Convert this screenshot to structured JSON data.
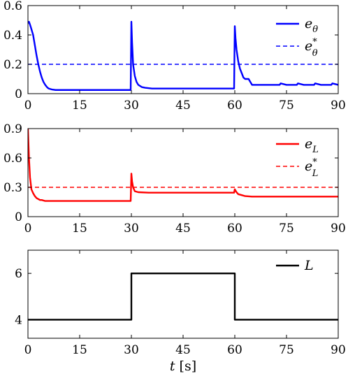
{
  "chart_data": [
    {
      "type": "line",
      "xlim": [
        0,
        90
      ],
      "ylim": [
        0,
        0.6
      ],
      "xticks": [
        "0",
        "15",
        "30",
        "45",
        "60",
        "75",
        "90"
      ],
      "yticks": [
        "0",
        "0.2",
        "0.4",
        "0.6"
      ],
      "legend_position": "top-right",
      "grid": false,
      "series": [
        {
          "name_main": "e",
          "name_sub": "θ",
          "name_sup": "",
          "style": "solid",
          "color": "#0000ff",
          "x": [
            0,
            0.3,
            0.6,
            1,
            1.5,
            2,
            2.5,
            3,
            3.5,
            4,
            4.5,
            5,
            5.5,
            6,
            7,
            8,
            10,
            15,
            20,
            25,
            29.8,
            30,
            30.2,
            30.5,
            31,
            31.5,
            32,
            33,
            34,
            36,
            40,
            45,
            50,
            55,
            59.8,
            60,
            60.2,
            60.5,
            61,
            61.5,
            62,
            62.5,
            63,
            64,
            65,
            70,
            73,
            73.3,
            75,
            78,
            78.3,
            80,
            83,
            83.3,
            85,
            88,
            88.3,
            90
          ],
          "y": [
            0.48,
            0.49,
            0.47,
            0.44,
            0.4,
            0.33,
            0.26,
            0.2,
            0.15,
            0.11,
            0.08,
            0.06,
            0.045,
            0.035,
            0.028,
            0.025,
            0.025,
            0.025,
            0.025,
            0.025,
            0.025,
            0.49,
            0.35,
            0.2,
            0.12,
            0.08,
            0.06,
            0.045,
            0.04,
            0.035,
            0.035,
            0.035,
            0.035,
            0.035,
            0.035,
            0.46,
            0.38,
            0.3,
            0.22,
            0.17,
            0.14,
            0.11,
            0.1,
            0.1,
            0.06,
            0.06,
            0.06,
            0.07,
            0.06,
            0.06,
            0.07,
            0.06,
            0.06,
            0.07,
            0.06,
            0.06,
            0.07,
            0.06
          ]
        },
        {
          "name_main": "e",
          "name_sub": "θ",
          "name_sup": "*",
          "style": "dashed",
          "color": "#0000ff",
          "x": [
            0,
            90
          ],
          "y": [
            0.2,
            0.2
          ]
        }
      ]
    },
    {
      "type": "line",
      "xlim": [
        0,
        90
      ],
      "ylim": [
        0,
        0.9
      ],
      "xticks": [
        "0",
        "15",
        "30",
        "45",
        "60",
        "75",
        "90"
      ],
      "yticks": [
        "0",
        "0.3",
        "0.6",
        "0.9"
      ],
      "legend_position": "top-right",
      "grid": false,
      "series": [
        {
          "name_main": "e",
          "name_sub": "L",
          "name_sup": "",
          "style": "solid",
          "color": "#ff0000",
          "x": [
            0,
            0.3,
            0.6,
            1,
            1.5,
            2,
            2.5,
            3,
            3.5,
            4,
            5,
            8,
            15,
            20,
            25,
            29.8,
            30,
            30.2,
            30.5,
            31,
            32,
            35,
            45,
            55,
            59.8,
            60,
            60.5,
            61,
            62,
            63,
            65,
            70,
            75,
            80,
            85,
            90
          ],
          "y": [
            0.9,
            0.6,
            0.4,
            0.28,
            0.24,
            0.21,
            0.19,
            0.18,
            0.17,
            0.17,
            0.16,
            0.16,
            0.16,
            0.16,
            0.16,
            0.16,
            0.44,
            0.36,
            0.3,
            0.26,
            0.25,
            0.245,
            0.245,
            0.245,
            0.245,
            0.28,
            0.25,
            0.23,
            0.22,
            0.21,
            0.205,
            0.205,
            0.205,
            0.205,
            0.205,
            0.205
          ]
        },
        {
          "name_main": "e",
          "name_sub": "L",
          "name_sup": "*",
          "style": "dashed",
          "color": "#ff0000",
          "x": [
            0,
            90
          ],
          "y": [
            0.3,
            0.3
          ]
        }
      ]
    },
    {
      "type": "line",
      "xlim": [
        0,
        90
      ],
      "ylim": [
        3.2,
        7.0
      ],
      "xticks": [
        "0",
        "15",
        "30",
        "45",
        "60",
        "75",
        "90"
      ],
      "yticks": [
        "4",
        "6"
      ],
      "legend_position": "top-right",
      "grid": false,
      "xlabel_main": "t",
      "xlabel_unit": " [s]",
      "series": [
        {
          "name_main": "L",
          "name_sub": "",
          "name_sup": "",
          "style": "solid",
          "color": "#000000",
          "x": [
            0,
            30,
            30,
            60,
            60,
            90
          ],
          "y": [
            4,
            4,
            6,
            6,
            4,
            4
          ]
        }
      ]
    }
  ]
}
